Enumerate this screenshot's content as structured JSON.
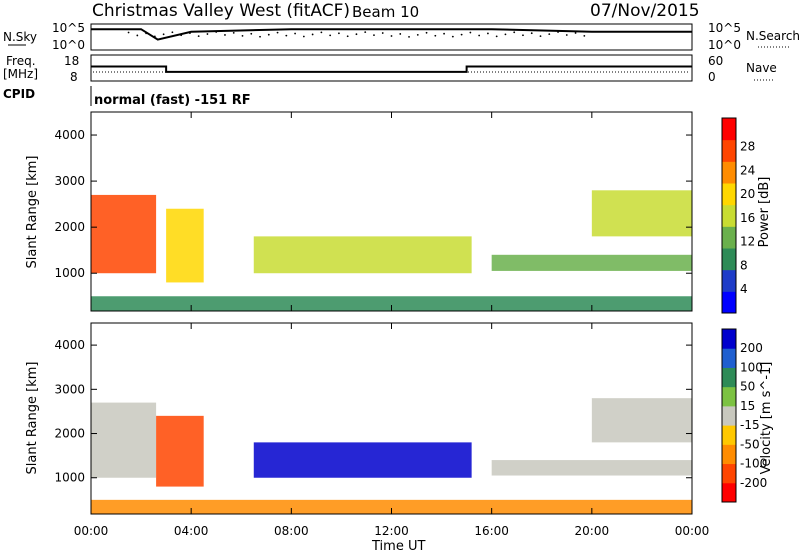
{
  "header": {
    "station": "Christmas Valley West (fitACF)",
    "beam": "Beam 10",
    "date": "07/Nov/2015"
  },
  "top_panels": {
    "nsky": {
      "label": "N.Sky",
      "ticks": [
        "10^5",
        "10^0"
      ],
      "right_label": "N.Search",
      "right_ticks": [
        "10^5",
        "10^0"
      ]
    },
    "freq": {
      "label_line1": "Freq.",
      "label_line2": "[MHz]",
      "ticks": [
        "18",
        "8"
      ],
      "right_label": "Nave",
      "right_ticks": [
        "60",
        "0"
      ]
    },
    "cpid": {
      "label": "CPID",
      "value": "normal (fast) -151 RF"
    }
  },
  "colors": {
    "power_scale": [
      "#0000ff",
      "#1e3cc8",
      "#2e8b57",
      "#6ab04c",
      "#c8dc32",
      "#ffd700",
      "#ff8c00",
      "#ff4500",
      "#ff0000"
    ],
    "velocity_scale": [
      "#0000cd",
      "#1f5fd0",
      "#2e8b57",
      "#7cc242",
      "#c8c8be",
      "#ffc800",
      "#ff8c00",
      "#ff4500",
      "#ff0000"
    ]
  },
  "chart_data": [
    {
      "type": "line",
      "title": "N.Sky",
      "x": [
        "00:00",
        "02:00",
        "02:40",
        "04:00",
        "08:00",
        "12:00",
        "16:00",
        "20:00",
        "00:00"
      ],
      "series": [
        {
          "values": [
            4,
            4,
            2,
            3.5,
            4,
            4,
            4,
            3.5,
            3.5
          ]
        }
      ]
    },
    {
      "type": "line",
      "title": "Freq. [MHz]",
      "ylim": [
        8,
        18
      ],
      "x": [
        "00:00",
        "03:00",
        "03:00",
        "15:00",
        "15:00",
        "24:00"
      ],
      "series": [
        {
          "values": [
            13.6,
            13.6,
            11.5,
            11.5,
            13.6,
            13.6
          ]
        }
      ]
    },
    {
      "type": "heatmap",
      "title": "Power [dB]",
      "xlabel": "Time UT",
      "ylabel": "Slant Range [km]",
      "x_ticks": [
        "00:00",
        "04:00",
        "08:00",
        "12:00",
        "16:00",
        "20:00",
        "00:00"
      ],
      "y_ticks": [
        "1000",
        "2000",
        "3000",
        "4000"
      ],
      "ylim": [
        180,
        4500
      ],
      "colorbar": {
        "label": "Power [dB]",
        "ticks": [
          "4",
          "8",
          "12",
          "16",
          "20",
          "24",
          "28"
        ]
      },
      "regions": [
        {
          "t_start": 0.0,
          "t_end": 2.6,
          "r_min": 1000,
          "r_max": 2700,
          "value": 26
        },
        {
          "t_start": 3.0,
          "t_end": 4.5,
          "r_min": 800,
          "r_max": 2400,
          "value": 18
        },
        {
          "t_start": 6.5,
          "t_end": 15.2,
          "r_min": 1000,
          "r_max": 1800,
          "value": 16
        },
        {
          "t_start": 16.0,
          "t_end": 24.0,
          "r_min": 1050,
          "r_max": 1400,
          "value": 12
        },
        {
          "t_start": 20.0,
          "t_end": 24.0,
          "r_min": 1800,
          "r_max": 2800,
          "value": 14
        },
        {
          "t_start": 0.0,
          "t_end": 24.0,
          "r_min": 180,
          "r_max": 500,
          "value": 8
        }
      ]
    },
    {
      "type": "heatmap",
      "title": "Velocity [m s-1]",
      "xlabel": "Time UT",
      "ylabel": "Slant Range [km]",
      "x_ticks": [
        "00:00",
        "04:00",
        "08:00",
        "12:00",
        "16:00",
        "20:00",
        "00:00"
      ],
      "y_ticks": [
        "1000",
        "2000",
        "3000",
        "4000"
      ],
      "ylim": [
        180,
        4500
      ],
      "colorbar": {
        "label": "Velocity [m s^-1]",
        "ticks": [
          "200",
          "100",
          "50",
          "15",
          "-15",
          "-50",
          "-100",
          "-200"
        ]
      },
      "regions": [
        {
          "t_start": 0.0,
          "t_end": 2.6,
          "r_min": 1000,
          "r_max": 2700,
          "value": 0
        },
        {
          "t_start": 2.6,
          "t_end": 4.5,
          "r_min": 800,
          "r_max": 2400,
          "value": -200
        },
        {
          "t_start": 6.5,
          "t_end": 15.2,
          "r_min": 1000,
          "r_max": 1800,
          "value": 200
        },
        {
          "t_start": 16.0,
          "t_end": 24.0,
          "r_min": 1050,
          "r_max": 1400,
          "value": 0
        },
        {
          "t_start": 20.0,
          "t_end": 24.0,
          "r_min": 1800,
          "r_max": 2800,
          "value": 0
        },
        {
          "t_start": 0.0,
          "t_end": 24.0,
          "r_min": 180,
          "r_max": 500,
          "value": -60
        }
      ]
    }
  ]
}
